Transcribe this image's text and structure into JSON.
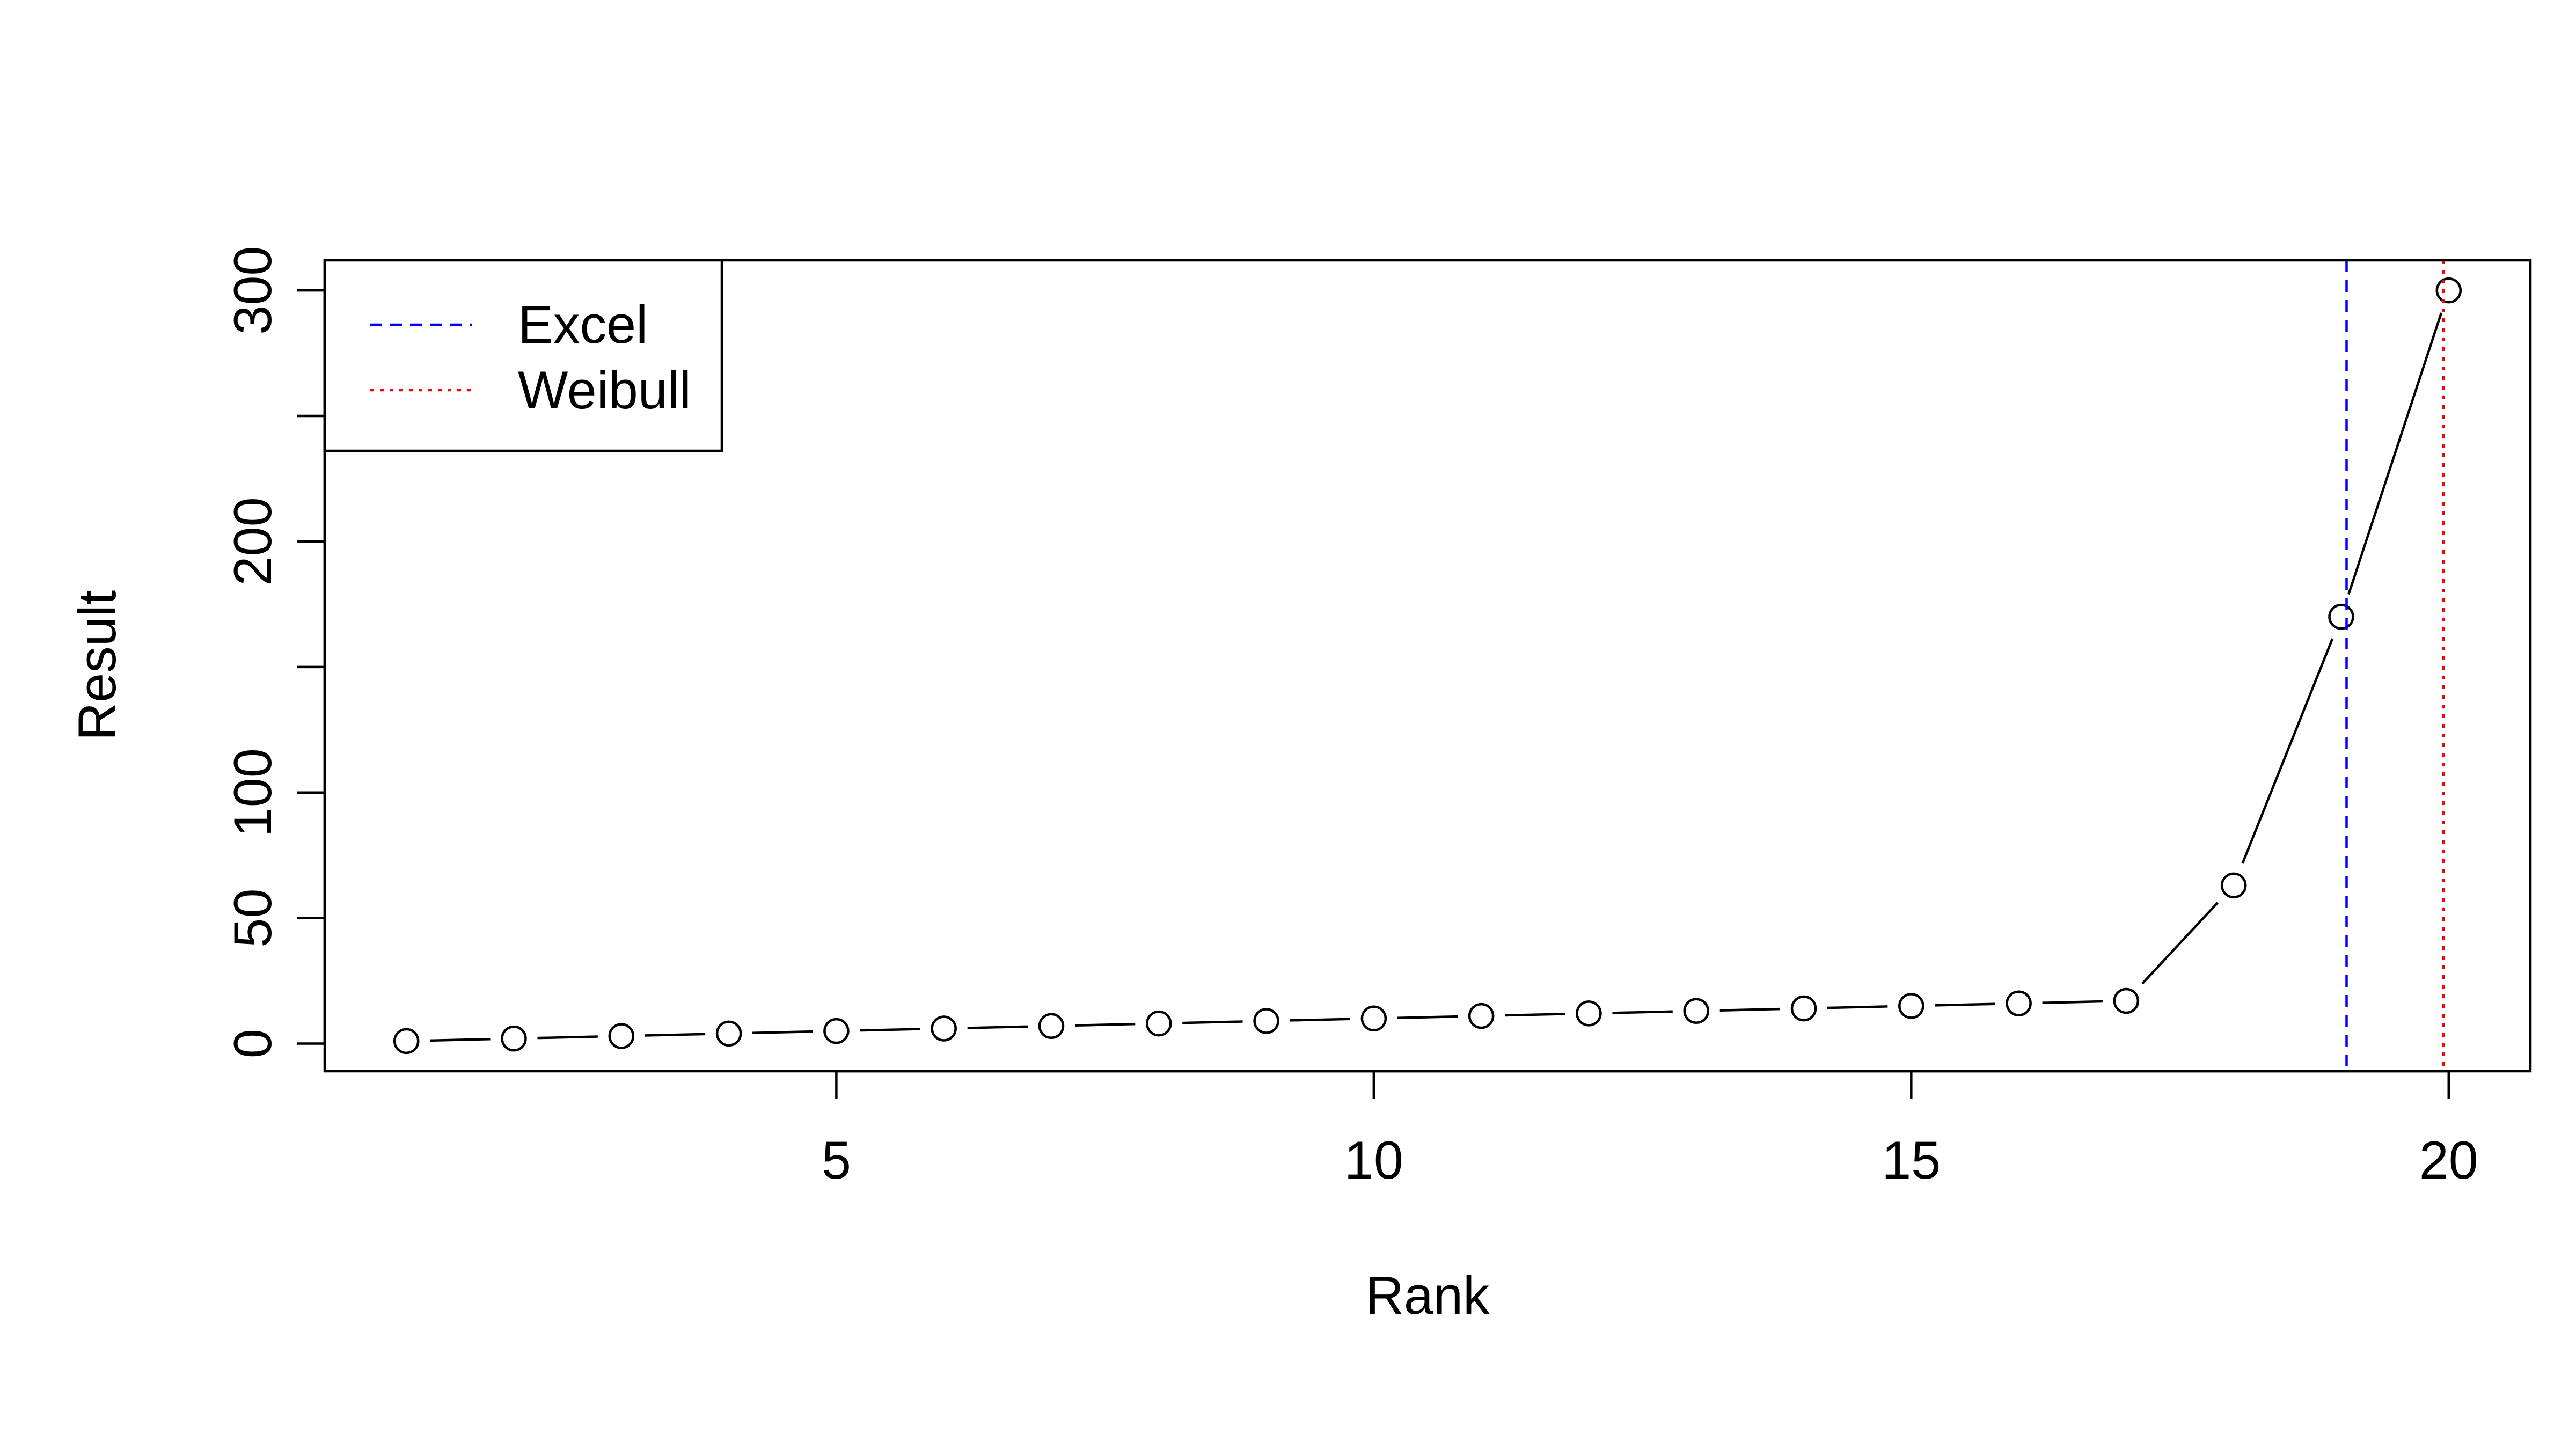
{
  "chart_data": {
    "type": "line",
    "xlabel": "Rank",
    "ylabel": "Result",
    "xlim": [
      0.24,
      20.76
    ],
    "ylim": [
      -11,
      312
    ],
    "x_ticks": [
      5,
      10,
      15,
      20
    ],
    "y_ticks": [
      0,
      50,
      100,
      150,
      200,
      250,
      300
    ],
    "y_tick_labels": [
      "0",
      "50",
      "100",
      "",
      "200",
      "",
      "300"
    ],
    "series": [
      {
        "x": [
          1,
          2,
          3,
          4,
          5,
          6,
          7,
          8,
          9,
          10,
          11,
          12,
          13,
          14,
          15,
          16,
          17,
          18,
          19,
          20
        ],
        "y": [
          1,
          2,
          3,
          4,
          5,
          6,
          7,
          8,
          9,
          10,
          11,
          12,
          13,
          14,
          15,
          16,
          17,
          63,
          170,
          300
        ],
        "color": "#000000",
        "marker": "open-circle"
      }
    ],
    "vlines": [
      {
        "name": "Excel",
        "x": 19.05,
        "color": "#0000ff",
        "style": "dashed"
      },
      {
        "name": "Weibull",
        "x": 19.95,
        "color": "#ff0000",
        "style": "dotted"
      }
    ],
    "legend": {
      "position": "top-left",
      "entries": [
        {
          "label": "Excel",
          "color": "#0000ff",
          "style": "dashed"
        },
        {
          "label": "Weibull",
          "color": "#ff0000",
          "style": "dotted"
        }
      ]
    },
    "grid": false
  }
}
